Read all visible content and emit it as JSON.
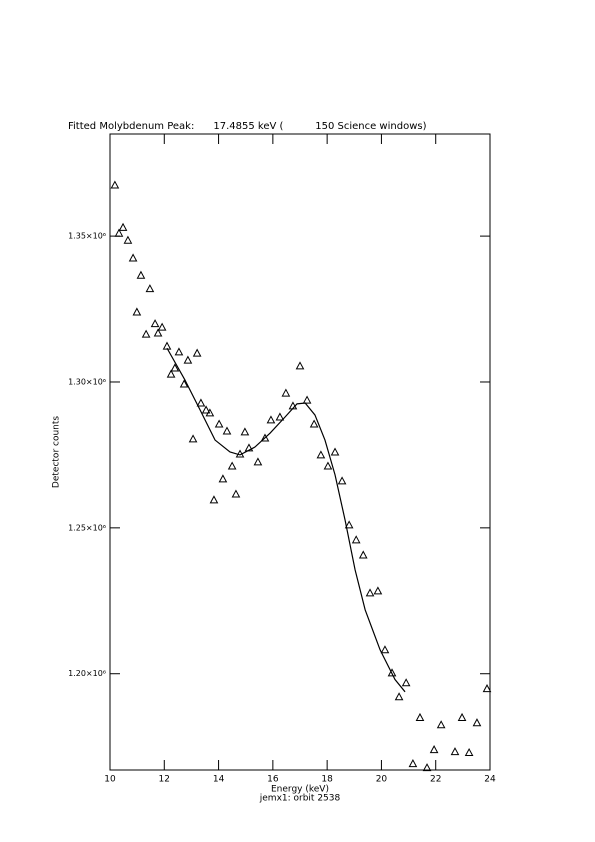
{
  "chart_data": {
    "type": "scatter",
    "title": "Fitted Molybdenum Peak:      17.4855 keV (          150 Science windows)",
    "x_label": "Energy (keV)",
    "subtitle": "jemx1: orbit 2538",
    "y_label": "Detector counts",
    "xlim": [
      10,
      24
    ],
    "xticks": [
      10,
      12,
      14,
      16,
      18,
      20,
      22,
      24
    ],
    "ylim": [
      1167000,
      1385000
    ],
    "yticks": [
      {
        "value": 1200000,
        "label": "1.20×10⁶"
      },
      {
        "value": 1250000,
        "label": "1.25×10⁶"
      },
      {
        "value": 1300000,
        "label": "1.30×10⁶"
      },
      {
        "value": 1350000,
        "label": "1.35×10⁶"
      }
    ],
    "series": [
      {
        "style": "triangle",
        "color": "#000000",
        "x": [
          10.18,
          10.33,
          10.48,
          10.66,
          10.85,
          10.99,
          11.14,
          11.33,
          11.47,
          11.66,
          11.77,
          11.92,
          12.1,
          12.25,
          12.39,
          12.54,
          12.73,
          12.87,
          13.06,
          13.21,
          13.35,
          13.54,
          13.68,
          13.83,
          14.02,
          14.16,
          14.31,
          14.5,
          14.64,
          14.79,
          14.97,
          15.12,
          15.45,
          15.71,
          15.93,
          16.26,
          16.48,
          16.74,
          17.0,
          17.26,
          17.52,
          17.77,
          18.03,
          18.29,
          18.55,
          18.81,
          19.07,
          19.33,
          19.58,
          19.87,
          20.13,
          20.39,
          20.65,
          20.91,
          21.16,
          21.42,
          21.68,
          21.94,
          22.2,
          22.71,
          22.97,
          23.23,
          23.52,
          23.89
        ],
        "values": [
          1367500,
          1351000,
          1353000,
          1348600,
          1342500,
          1324000,
          1336600,
          1316400,
          1332000,
          1320000,
          1316800,
          1318800,
          1312300,
          1302700,
          1304800,
          1310300,
          1299300,
          1307500,
          1280500,
          1309900,
          1292800,
          1290400,
          1289400,
          1259600,
          1285600,
          1266800,
          1283200,
          1271200,
          1261600,
          1275300,
          1282900,
          1277400,
          1272600,
          1280800,
          1287000,
          1288000,
          1296200,
          1291800,
          1305500,
          1293800,
          1285600,
          1275000,
          1271200,
          1276000,
          1266100,
          1251000,
          1245900,
          1240700,
          1227700,
          1228400,
          1208200,
          1200300,
          1192100,
          1196900,
          1169200,
          1185000,
          1167800,
          1174000,
          1182500,
          1173300,
          1185000,
          1173000,
          1183200,
          1194900
        ]
      },
      {
        "style": "line",
        "color": "#000000",
        "x": [
          12.1,
          12.76,
          13.32,
          13.87,
          14.42,
          14.79,
          15.34,
          15.9,
          16.45,
          16.89,
          17.19,
          17.55,
          17.92,
          18.29,
          18.66,
          19.03,
          19.4,
          19.95,
          20.5,
          20.87
        ],
        "values": [
          1311600,
          1300700,
          1290400,
          1280100,
          1276000,
          1275000,
          1277700,
          1282500,
          1288000,
          1292500,
          1292800,
          1288700,
          1280100,
          1268200,
          1252700,
          1235600,
          1221900,
          1208200,
          1198000,
          1193800
        ]
      }
    ]
  }
}
